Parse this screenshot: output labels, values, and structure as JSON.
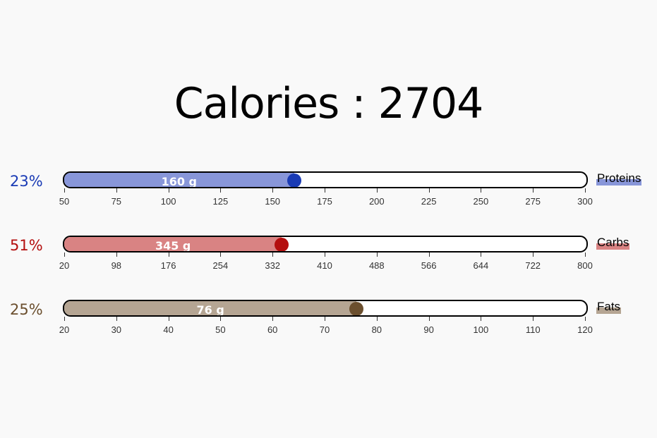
{
  "title": "Calories : 2704",
  "macros": [
    {
      "pct": "23%",
      "grams": "160 g",
      "name": "Proteins",
      "value": 160,
      "min": 50,
      "max": 300,
      "ticks": [
        "50",
        "75",
        "100",
        "125",
        "150",
        "175",
        "200",
        "225",
        "250",
        "275",
        "300"
      ],
      "color": "#1a3bb5",
      "fill": "#8896d9",
      "highlight": "#8896d9"
    },
    {
      "pct": "51%",
      "grams": "345 g",
      "name": "Carbs",
      "value": 345,
      "min": 20,
      "max": 800,
      "ticks": [
        "20",
        "98",
        "176",
        "254",
        "332",
        "410",
        "488",
        "566",
        "644",
        "722",
        "800"
      ],
      "color": "#b40f0f",
      "fill": "#d98383",
      "highlight": "#d98383"
    },
    {
      "pct": "25%",
      "grams": "76 g",
      "name": "Fats",
      "value": 76,
      "min": 20,
      "max": 120,
      "ticks": [
        "20",
        "30",
        "40",
        "50",
        "60",
        "70",
        "80",
        "90",
        "100",
        "110",
        "120"
      ],
      "color": "#6b4f2e",
      "fill": "#b5a593",
      "highlight": "#b5a593"
    }
  ]
}
